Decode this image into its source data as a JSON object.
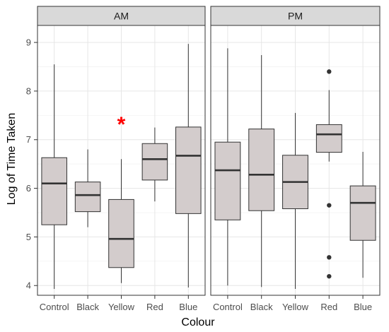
{
  "chart_data": {
    "type": "boxplot",
    "xlabel": "Colour",
    "ylabel": "Log of Time Taken",
    "ylim": [
      3.8,
      9.35
    ],
    "yticks": [
      4,
      5,
      6,
      7,
      8,
      9
    ],
    "grid": true,
    "categories": [
      "Control",
      "Black",
      "Yellow",
      "Red",
      "Blue"
    ],
    "colors": {
      "box_fill": "#d3cccc",
      "annotation": "#ff0000",
      "strip_fill": "#d9d9d9"
    },
    "panels": [
      {
        "label": "AM",
        "boxes": [
          {
            "category": "Control",
            "min": 3.93,
            "q1": 5.25,
            "median": 6.1,
            "q3": 6.63,
            "max": 8.55,
            "outliers": []
          },
          {
            "category": "Black",
            "min": 5.2,
            "q1": 5.52,
            "median": 5.86,
            "q3": 6.13,
            "max": 6.8,
            "outliers": []
          },
          {
            "category": "Yellow",
            "min": 4.05,
            "q1": 4.37,
            "median": 4.96,
            "q3": 5.77,
            "max": 6.6,
            "outliers": []
          },
          {
            "category": "Red",
            "min": 5.73,
            "q1": 6.17,
            "median": 6.6,
            "q3": 6.92,
            "max": 7.25,
            "outliers": []
          },
          {
            "category": "Blue",
            "min": 3.96,
            "q1": 5.48,
            "median": 6.67,
            "q3": 7.26,
            "max": 8.97,
            "outliers": []
          }
        ],
        "annotations": [
          {
            "text": "*",
            "category": "Yellow",
            "y": 7.45
          }
        ]
      },
      {
        "label": "PM",
        "boxes": [
          {
            "category": "Control",
            "min": 4.0,
            "q1": 5.35,
            "median": 6.37,
            "q3": 6.95,
            "max": 8.88,
            "outliers": []
          },
          {
            "category": "Black",
            "min": 3.97,
            "q1": 5.54,
            "median": 6.28,
            "q3": 7.22,
            "max": 8.74,
            "outliers": []
          },
          {
            "category": "Yellow",
            "min": 3.93,
            "q1": 5.58,
            "median": 6.13,
            "q3": 6.68,
            "max": 7.55,
            "outliers": []
          },
          {
            "category": "Red",
            "min": 6.55,
            "q1": 6.74,
            "median": 7.11,
            "q3": 7.31,
            "max": 8.02,
            "outliers": [
              8.4,
              5.65,
              4.58,
              4.19
            ]
          },
          {
            "category": "Blue",
            "min": 4.16,
            "q1": 4.93,
            "median": 5.7,
            "q3": 6.05,
            "max": 6.75,
            "outliers": []
          }
        ],
        "annotations": []
      }
    ]
  }
}
